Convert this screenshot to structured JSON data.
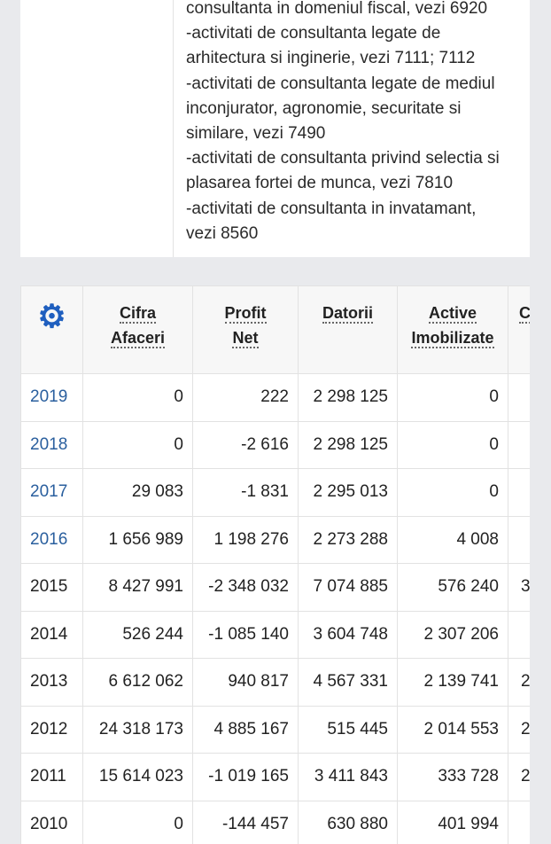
{
  "description_lines": [
    "consultanta in domeniul fiscal, vezi 6920",
    "-activitati de consultanta legate de",
    "arhitectura si inginerie, vezi 7111; 7112",
    "-activitati de consultanta legate de mediul",
    "inconjurator, agronomie, securitate si",
    "similare, vezi 7490",
    "-activitati de consultanta privind selectia si",
    "plasarea fortei de munca, vezi 7810",
    "-activitati de consultanta in invatamant,",
    "vezi 8560"
  ],
  "table": {
    "settings_icon": "gear-icon",
    "headers": [
      [
        "Cifra",
        "Afaceri"
      ],
      [
        "Profit",
        "Net"
      ],
      [
        "Datorii",
        ""
      ],
      [
        "Active",
        "Imobilizate"
      ],
      [
        "C",
        ""
      ]
    ],
    "rows": [
      {
        "year": "2019",
        "link": true,
        "values": [
          "0",
          "222",
          "2 298 125",
          "0",
          ""
        ]
      },
      {
        "year": "2018",
        "link": true,
        "values": [
          "0",
          "-2 616",
          "2 298 125",
          "0",
          ""
        ]
      },
      {
        "year": "2017",
        "link": true,
        "values": [
          "29 083",
          "-1 831",
          "2 295 013",
          "0",
          ""
        ]
      },
      {
        "year": "2016",
        "link": true,
        "values": [
          "1 656 989",
          "1 198 276",
          "2 273 288",
          "4 008",
          ""
        ]
      },
      {
        "year": "2015",
        "link": false,
        "values": [
          "8 427 991",
          "-2 348 032",
          "7 074 885",
          "576 240",
          "3"
        ]
      },
      {
        "year": "2014",
        "link": false,
        "values": [
          "526 244",
          "-1 085 140",
          "3 604 748",
          "2 307 206",
          ""
        ]
      },
      {
        "year": "2013",
        "link": false,
        "values": [
          "6 612 062",
          "940 817",
          "4 567 331",
          "2 139 741",
          "2"
        ]
      },
      {
        "year": "2012",
        "link": false,
        "values": [
          "24 318 173",
          "4 885 167",
          "515 445",
          "2 014 553",
          "2"
        ]
      },
      {
        "year": "2011",
        "link": false,
        "values": [
          "15 614 023",
          "-1 019 165",
          "3 411 843",
          "333 728",
          "2"
        ]
      },
      {
        "year": "2010",
        "link": false,
        "values": [
          "0",
          "-144 457",
          "630 880",
          "401 994",
          ""
        ]
      }
    ]
  }
}
